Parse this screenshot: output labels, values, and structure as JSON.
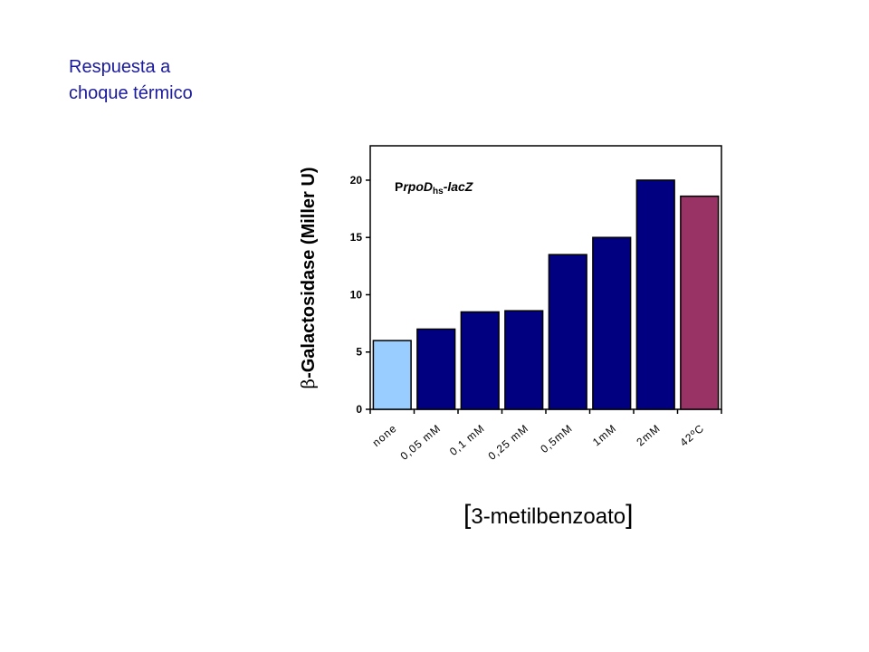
{
  "slide": {
    "title_line1": "Respuesta a",
    "title_line2": "choque térmico"
  },
  "chart_data": {
    "type": "bar",
    "title": "",
    "annotation": {
      "prefix": "P",
      "gene": "rpoD",
      "subscript": "hs",
      "suffix": "-lacZ"
    },
    "xlabel": "3-metilbenzoato",
    "xlabel_open": "[",
    "xlabel_close": "]",
    "ylabel_symbol": "β",
    "ylabel": "-Galactosidase (Miller U)",
    "ylim": [
      0,
      23
    ],
    "yticks": [
      0,
      5,
      10,
      15,
      20
    ],
    "grid": false,
    "categories": [
      "none",
      "0,05 mM",
      "0,1 mM",
      "0,25 mM",
      "0,5mM",
      "1mM",
      "2mM",
      "42ºC"
    ],
    "values": [
      6.0,
      7.0,
      8.5,
      8.6,
      13.5,
      15.0,
      20.0,
      18.6
    ],
    "colors": [
      "#99ccff",
      "#000080",
      "#000080",
      "#000080",
      "#000080",
      "#000080",
      "#000080",
      "#993366"
    ]
  }
}
